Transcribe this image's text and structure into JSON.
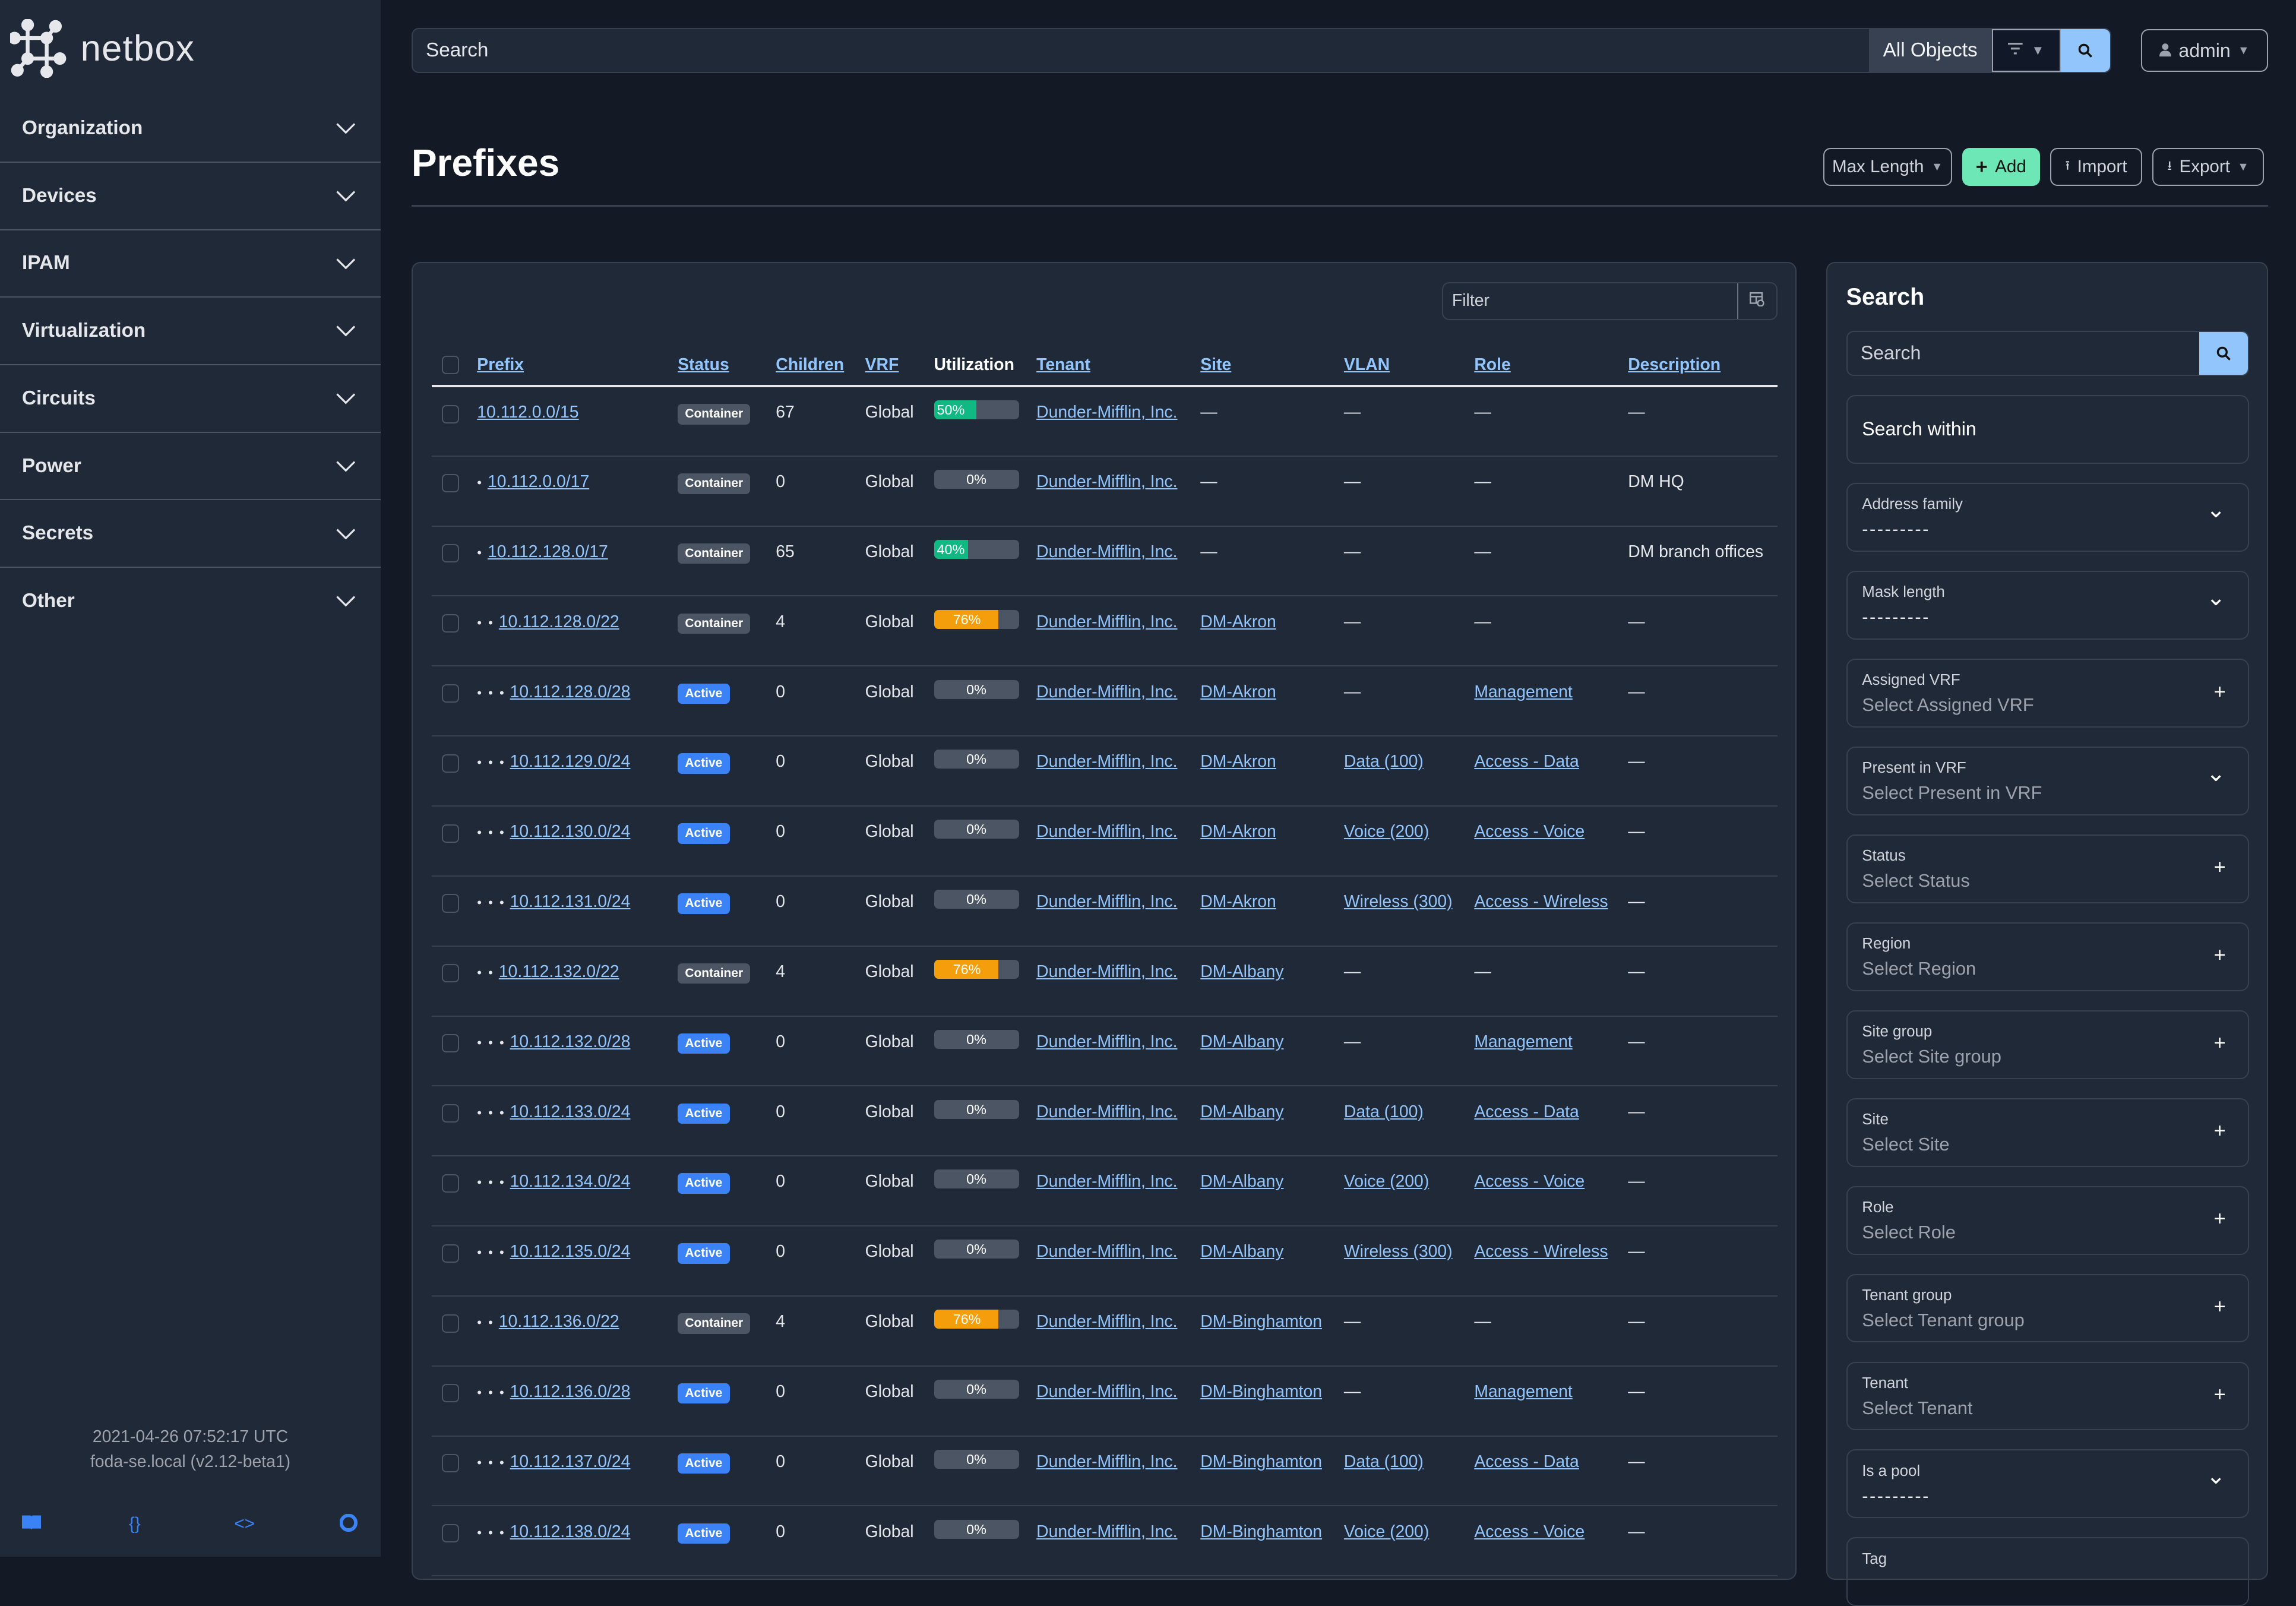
{
  "brand": {
    "name": "netbox"
  },
  "sidebar": {
    "items": [
      {
        "label": "Organization"
      },
      {
        "label": "Devices"
      },
      {
        "label": "IPAM"
      },
      {
        "label": "Virtualization"
      },
      {
        "label": "Circuits"
      },
      {
        "label": "Power"
      },
      {
        "label": "Secrets"
      },
      {
        "label": "Other"
      }
    ],
    "footer": {
      "timestamp": "2021-04-26 07:52:17 UTC",
      "host": "foda-se.local (v2.12-beta1)"
    },
    "footer_icons": [
      "book-icon",
      "braces-icon",
      "code-icon",
      "lifebuoy-icon"
    ]
  },
  "topbar": {
    "search_placeholder": "Search",
    "scope": "All Objects",
    "user": "admin"
  },
  "page": {
    "title": "Prefixes",
    "actions": {
      "max_length": "Max Length",
      "add": "Add",
      "import": "Import",
      "export": "Export"
    }
  },
  "table": {
    "filter_placeholder": "Filter",
    "columns": [
      "Prefix",
      "Status",
      "Children",
      "VRF",
      "Utilization",
      "Tenant",
      "Site",
      "VLAN",
      "Role",
      "Description"
    ],
    "status_colors": {
      "Container": "#4b5563",
      "Active": "#3b82f6"
    },
    "util_colors": {
      "low": "#10b981",
      "high": "#f59e0b"
    },
    "rows": [
      {
        "depth": 0,
        "prefix": "10.112.0.0/15",
        "status": "Container",
        "children": "67",
        "vrf": "Global",
        "util": 50,
        "tenant": "Dunder-Mifflin, Inc.",
        "site": "—",
        "vlan": "—",
        "role": "—",
        "description": "—"
      },
      {
        "depth": 1,
        "prefix": "10.112.0.0/17",
        "status": "Container",
        "children": "0",
        "vrf": "Global",
        "util": 0,
        "tenant": "Dunder-Mifflin, Inc.",
        "site": "—",
        "vlan": "—",
        "role": "—",
        "description": "DM HQ"
      },
      {
        "depth": 1,
        "prefix": "10.112.128.0/17",
        "status": "Container",
        "children": "65",
        "vrf": "Global",
        "util": 40,
        "tenant": "Dunder-Mifflin, Inc.",
        "site": "—",
        "vlan": "—",
        "role": "—",
        "description": "DM branch offices"
      },
      {
        "depth": 2,
        "prefix": "10.112.128.0/22",
        "status": "Container",
        "children": "4",
        "vrf": "Global",
        "util": 76,
        "tenant": "Dunder-Mifflin, Inc.",
        "site": "DM-Akron",
        "vlan": "—",
        "role": "—",
        "description": "—"
      },
      {
        "depth": 3,
        "prefix": "10.112.128.0/28",
        "status": "Active",
        "children": "0",
        "vrf": "Global",
        "util": 0,
        "tenant": "Dunder-Mifflin, Inc.",
        "site": "DM-Akron",
        "vlan": "—",
        "role": "Management",
        "description": "—"
      },
      {
        "depth": 3,
        "prefix": "10.112.129.0/24",
        "status": "Active",
        "children": "0",
        "vrf": "Global",
        "util": 0,
        "tenant": "Dunder-Mifflin, Inc.",
        "site": "DM-Akron",
        "vlan": "Data (100)",
        "role": "Access - Data",
        "description": "—"
      },
      {
        "depth": 3,
        "prefix": "10.112.130.0/24",
        "status": "Active",
        "children": "0",
        "vrf": "Global",
        "util": 0,
        "tenant": "Dunder-Mifflin, Inc.",
        "site": "DM-Akron",
        "vlan": "Voice (200)",
        "role": "Access - Voice",
        "description": "—"
      },
      {
        "depth": 3,
        "prefix": "10.112.131.0/24",
        "status": "Active",
        "children": "0",
        "vrf": "Global",
        "util": 0,
        "tenant": "Dunder-Mifflin, Inc.",
        "site": "DM-Akron",
        "vlan": "Wireless (300)",
        "role": "Access - Wireless",
        "description": "—"
      },
      {
        "depth": 2,
        "prefix": "10.112.132.0/22",
        "status": "Container",
        "children": "4",
        "vrf": "Global",
        "util": 76,
        "tenant": "Dunder-Mifflin, Inc.",
        "site": "DM-Albany",
        "vlan": "—",
        "role": "—",
        "description": "—"
      },
      {
        "depth": 3,
        "prefix": "10.112.132.0/28",
        "status": "Active",
        "children": "0",
        "vrf": "Global",
        "util": 0,
        "tenant": "Dunder-Mifflin, Inc.",
        "site": "DM-Albany",
        "vlan": "—",
        "role": "Management",
        "description": "—"
      },
      {
        "depth": 3,
        "prefix": "10.112.133.0/24",
        "status": "Active",
        "children": "0",
        "vrf": "Global",
        "util": 0,
        "tenant": "Dunder-Mifflin, Inc.",
        "site": "DM-Albany",
        "vlan": "Data (100)",
        "role": "Access - Data",
        "description": "—"
      },
      {
        "depth": 3,
        "prefix": "10.112.134.0/24",
        "status": "Active",
        "children": "0",
        "vrf": "Global",
        "util": 0,
        "tenant": "Dunder-Mifflin, Inc.",
        "site": "DM-Albany",
        "vlan": "Voice (200)",
        "role": "Access - Voice",
        "description": "—"
      },
      {
        "depth": 3,
        "prefix": "10.112.135.0/24",
        "status": "Active",
        "children": "0",
        "vrf": "Global",
        "util": 0,
        "tenant": "Dunder-Mifflin, Inc.",
        "site": "DM-Albany",
        "vlan": "Wireless (300)",
        "role": "Access - Wireless",
        "description": "—"
      },
      {
        "depth": 2,
        "prefix": "10.112.136.0/22",
        "status": "Container",
        "children": "4",
        "vrf": "Global",
        "util": 76,
        "tenant": "Dunder-Mifflin, Inc.",
        "site": "DM-Binghamton",
        "vlan": "—",
        "role": "—",
        "description": "—"
      },
      {
        "depth": 3,
        "prefix": "10.112.136.0/28",
        "status": "Active",
        "children": "0",
        "vrf": "Global",
        "util": 0,
        "tenant": "Dunder-Mifflin, Inc.",
        "site": "DM-Binghamton",
        "vlan": "—",
        "role": "Management",
        "description": "—"
      },
      {
        "depth": 3,
        "prefix": "10.112.137.0/24",
        "status": "Active",
        "children": "0",
        "vrf": "Global",
        "util": 0,
        "tenant": "Dunder-Mifflin, Inc.",
        "site": "DM-Binghamton",
        "vlan": "Data (100)",
        "role": "Access - Data",
        "description": "—"
      },
      {
        "depth": 3,
        "prefix": "10.112.138.0/24",
        "status": "Active",
        "children": "0",
        "vrf": "Global",
        "util": 0,
        "tenant": "Dunder-Mifflin, Inc.",
        "site": "DM-Binghamton",
        "vlan": "Voice (200)",
        "role": "Access - Voice",
        "description": "—"
      }
    ]
  },
  "search_panel": {
    "title": "Search",
    "search_placeholder": "Search",
    "search_within": "Search within",
    "fields": [
      {
        "label": "Address family",
        "value": "---------",
        "icon": "chevron-down"
      },
      {
        "label": "Mask length",
        "value": "---------",
        "icon": "chevron-down"
      },
      {
        "label": "Assigned VRF",
        "value": "Select Assigned VRF",
        "icon": "plus"
      },
      {
        "label": "Present in VRF",
        "value": "Select Present in VRF",
        "icon": "chevron-down"
      },
      {
        "label": "Status",
        "value": "Select Status",
        "icon": "plus"
      },
      {
        "label": "Region",
        "value": "Select Region",
        "icon": "plus"
      },
      {
        "label": "Site group",
        "value": "Select Site group",
        "icon": "plus"
      },
      {
        "label": "Site",
        "value": "Select Site",
        "icon": "plus"
      },
      {
        "label": "Role",
        "value": "Select Role",
        "icon": "plus"
      },
      {
        "label": "Tenant group",
        "value": "Select Tenant group",
        "icon": "plus"
      },
      {
        "label": "Tenant",
        "value": "Select Tenant",
        "icon": "plus"
      },
      {
        "label": "Is a pool",
        "value": "---------",
        "icon": "chevron-down"
      },
      {
        "label": "Tag",
        "value": "",
        "icon": ""
      }
    ]
  }
}
